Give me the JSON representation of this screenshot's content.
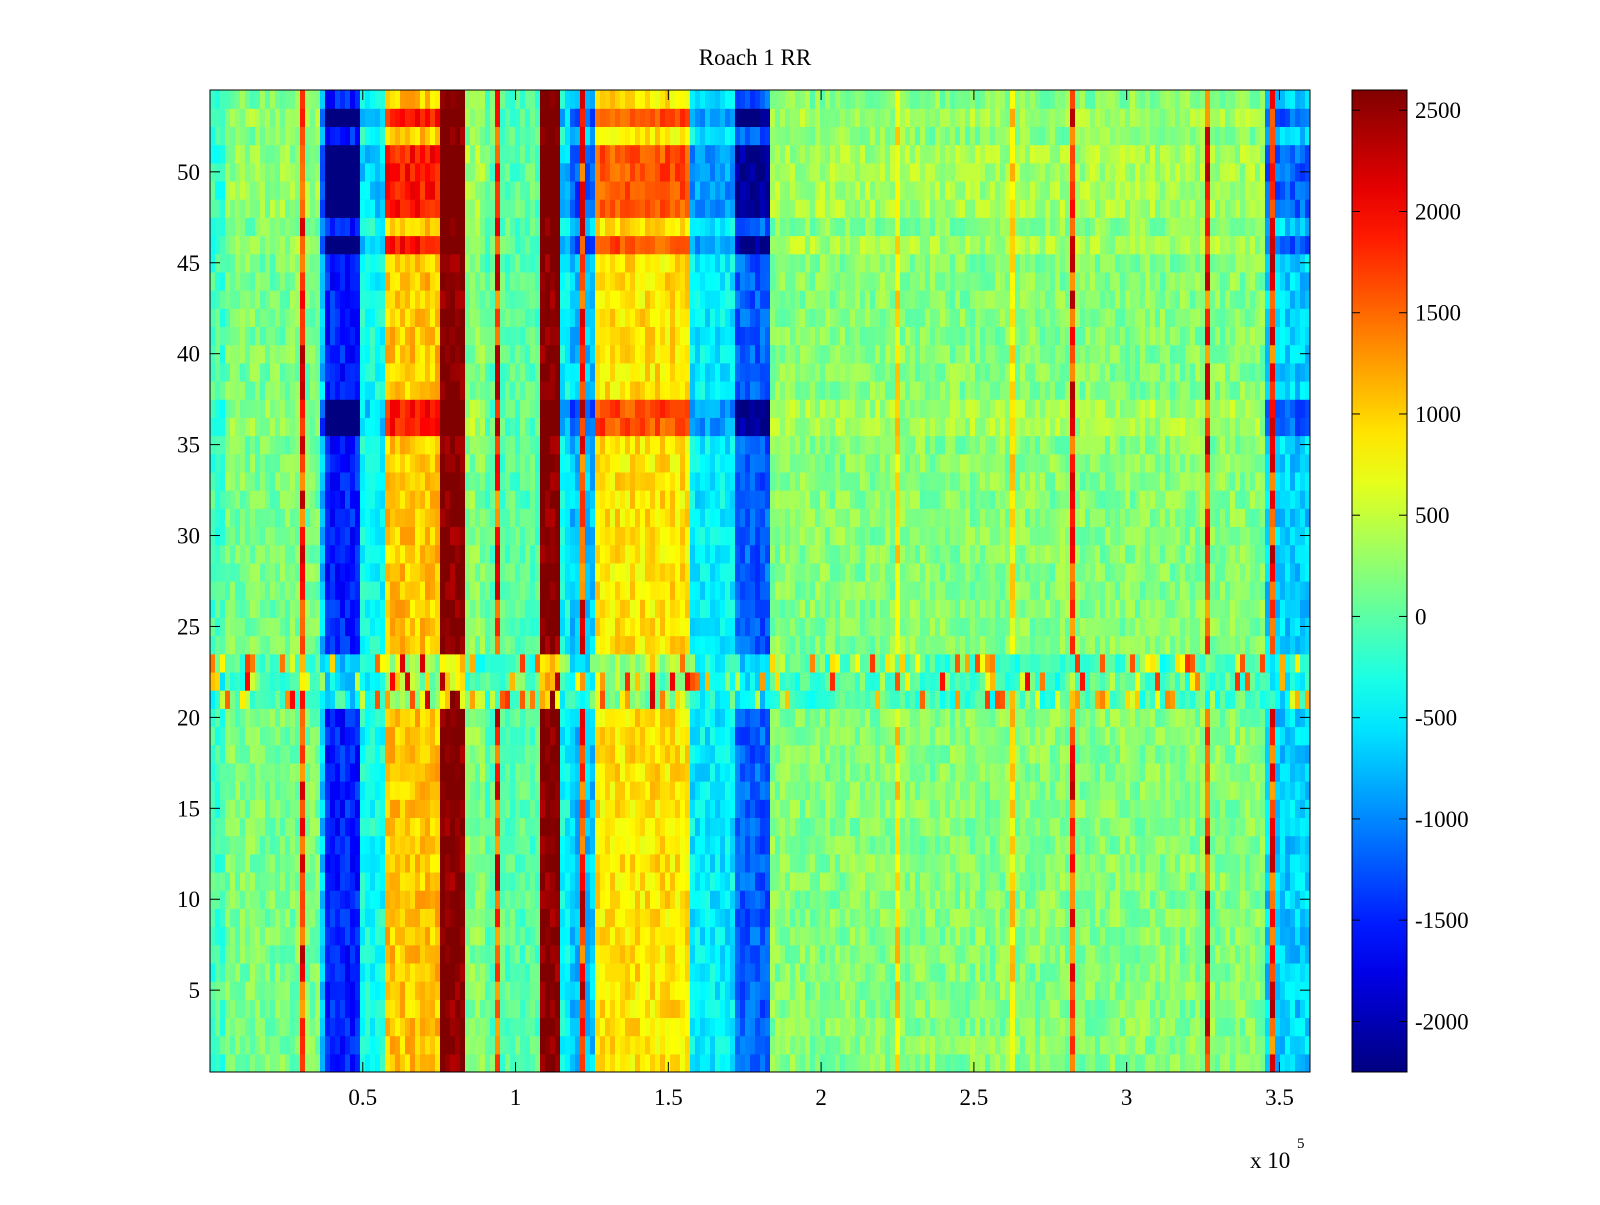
{
  "chart_data": {
    "type": "heatmap",
    "title": "Roach 1 RR",
    "xlabel": "",
    "ylabel": "",
    "x_multiplier_label": "x 10",
    "x_multiplier_exponent": "5",
    "xlim": [
      0,
      360000
    ],
    "ylim": [
      0.5,
      54.5
    ],
    "x_ticks": [
      {
        "value": 50000,
        "label": "0.5"
      },
      {
        "value": 100000,
        "label": "1"
      },
      {
        "value": 150000,
        "label": "1.5"
      },
      {
        "value": 200000,
        "label": "2"
      },
      {
        "value": 250000,
        "label": "2.5"
      },
      {
        "value": 300000,
        "label": "3"
      },
      {
        "value": 350000,
        "label": "3.5"
      }
    ],
    "y_ticks": [
      {
        "value": 5,
        "label": "5"
      },
      {
        "value": 10,
        "label": "10"
      },
      {
        "value": 15,
        "label": "15"
      },
      {
        "value": 20,
        "label": "20"
      },
      {
        "value": 25,
        "label": "25"
      },
      {
        "value": 30,
        "label": "30"
      },
      {
        "value": 35,
        "label": "35"
      },
      {
        "value": 40,
        "label": "40"
      },
      {
        "value": 45,
        "label": "45"
      },
      {
        "value": 50,
        "label": "50"
      }
    ],
    "colorbar": {
      "colormap": "jet",
      "range": [
        -2250,
        2600
      ],
      "ticks": [
        {
          "value": 2500,
          "label": "2500"
        },
        {
          "value": 2000,
          "label": "2000"
        },
        {
          "value": 1500,
          "label": "1500"
        },
        {
          "value": 1000,
          "label": "1000"
        },
        {
          "value": 500,
          "label": "500"
        },
        {
          "value": 0,
          "label": "0"
        },
        {
          "value": -500,
          "label": "-500"
        },
        {
          "value": -1000,
          "label": "-1000"
        },
        {
          "value": -1500,
          "label": "-1500"
        },
        {
          "value": -2000,
          "label": "-2000"
        }
      ]
    },
    "rows": 54,
    "grid": false,
    "column_bands": [
      {
        "x": [
          0,
          5000
        ],
        "value": -100
      },
      {
        "x": [
          5000,
          36000
        ],
        "value": 150
      },
      {
        "x": [
          36000,
          38000
        ],
        "value": -700
      },
      {
        "x": [
          38000,
          49000
        ],
        "value": -1500
      },
      {
        "x": [
          49000,
          57000
        ],
        "value": -350
      },
      {
        "x": [
          57000,
          76000
        ],
        "value": 1050
      },
      {
        "x": [
          76000,
          84000
        ],
        "value": 2600
      },
      {
        "x": [
          84000,
          90000
        ],
        "value": 200
      },
      {
        "x": [
          90000,
          108000
        ],
        "value": 0
      },
      {
        "x": [
          108000,
          114000
        ],
        "value": 2600
      },
      {
        "x": [
          114000,
          118000
        ],
        "value": -400
      },
      {
        "x": [
          118000,
          126000
        ],
        "value": -700
      },
      {
        "x": [
          126000,
          157000
        ],
        "value": 900
      },
      {
        "x": [
          157000,
          172000
        ],
        "value": -500
      },
      {
        "x": [
          172000,
          184000
        ],
        "value": -1200
      },
      {
        "x": [
          184000,
          345000
        ],
        "value": 200
      },
      {
        "x": [
          345000,
          360000
        ],
        "value": -650
      }
    ],
    "row_bands": [
      {
        "rows": [
          1,
          20
        ],
        "effect": "base"
      },
      {
        "rows": [
          21,
          23
        ],
        "effect": "striped"
      },
      {
        "rows": [
          24,
          35
        ],
        "effect": "base"
      },
      {
        "rows": [
          36,
          37
        ],
        "effect": "amplified"
      },
      {
        "rows": [
          38,
          45
        ],
        "effect": "base"
      },
      {
        "rows": [
          46,
          46
        ],
        "effect": "amplified"
      },
      {
        "rows": [
          47,
          47
        ],
        "effect": "base"
      },
      {
        "rows": [
          48,
          51
        ],
        "effect": "amplified"
      },
      {
        "rows": [
          52,
          52
        ],
        "effect": "base"
      },
      {
        "rows": [
          53,
          53
        ],
        "effect": "amplified"
      },
      {
        "rows": [
          54,
          54
        ],
        "effect": "base"
      }
    ]
  }
}
